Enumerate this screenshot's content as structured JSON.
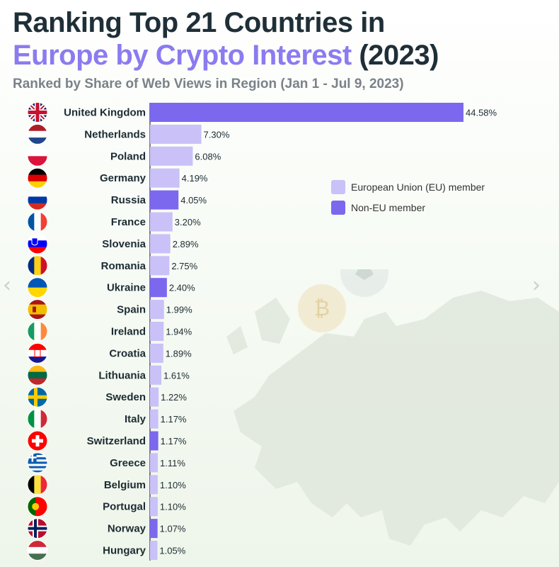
{
  "header": {
    "title_line1": "Ranking Top 21 Countries in",
    "title_accent": "Europe by Crypto Interest",
    "title_tail": "(2023)",
    "subtitle": "Ranked by Share of Web Views in Region (Jan 1 - Jul 9, 2023)"
  },
  "legend": {
    "eu_label": "European Union (EU) member",
    "non_eu_label": "Non-EU member"
  },
  "colors": {
    "eu": "#c9c1f7",
    "non_eu": "#7b68ee",
    "title_accent": "#8b7bf0"
  },
  "chart_data": {
    "type": "bar",
    "orientation": "horizontal",
    "title": "Ranking Top 21 Countries in Europe by Crypto Interest (2023)",
    "subtitle": "Ranked by Share of Web Views in Region (Jan 1 - Jul 9, 2023)",
    "value_unit": "%",
    "xlim": [
      0,
      44.58
    ],
    "categories": [
      "United Kingdom",
      "Netherlands",
      "Poland",
      "Germany",
      "Russia",
      "France",
      "Slovenia",
      "Romania",
      "Ukraine",
      "Spain",
      "Ireland",
      "Croatia",
      "Lithuania",
      "Sweden",
      "Italy",
      "Switzerland",
      "Greece",
      "Belgium",
      "Portugal",
      "Norway",
      "Hungary"
    ],
    "values": [
      44.58,
      7.3,
      6.08,
      4.19,
      4.05,
      3.2,
      2.89,
      2.75,
      2.4,
      1.99,
      1.94,
      1.89,
      1.61,
      1.22,
      1.17,
      1.17,
      1.11,
      1.1,
      1.1,
      1.07,
      1.05
    ],
    "value_labels": [
      "44.58%",
      "7.30%",
      "6.08%",
      "4.19%",
      "4.05%",
      "3.20%",
      "2.89%",
      "2.75%",
      "2.40%",
      "1.99%",
      "1.94%",
      "1.89%",
      "1.61%",
      "1.22%",
      "1.17%",
      "1.17%",
      "1.11%",
      "1.10%",
      "1.10%",
      "1.07%",
      "1.05%"
    ],
    "membership": [
      "non_eu",
      "eu",
      "eu",
      "eu",
      "non_eu",
      "eu",
      "eu",
      "eu",
      "non_eu",
      "eu",
      "eu",
      "eu",
      "eu",
      "eu",
      "eu",
      "non_eu",
      "eu",
      "eu",
      "eu",
      "non_eu",
      "eu"
    ],
    "flags": [
      "uk-flag-icon",
      "netherlands-flag-icon",
      "poland-flag-icon",
      "germany-flag-icon",
      "russia-flag-icon",
      "france-flag-icon",
      "slovenia-flag-icon",
      "romania-flag-icon",
      "ukraine-flag-icon",
      "spain-flag-icon",
      "ireland-flag-icon",
      "croatia-flag-icon",
      "lithuania-flag-icon",
      "sweden-flag-icon",
      "italy-flag-icon",
      "switzerland-flag-icon",
      "greece-flag-icon",
      "belgium-flag-icon",
      "portugal-flag-icon",
      "norway-flag-icon",
      "hungary-flag-icon"
    ],
    "legend": [
      {
        "name": "European Union (EU) member",
        "key": "eu"
      },
      {
        "name": "Non-EU member",
        "key": "non_eu"
      }
    ]
  }
}
